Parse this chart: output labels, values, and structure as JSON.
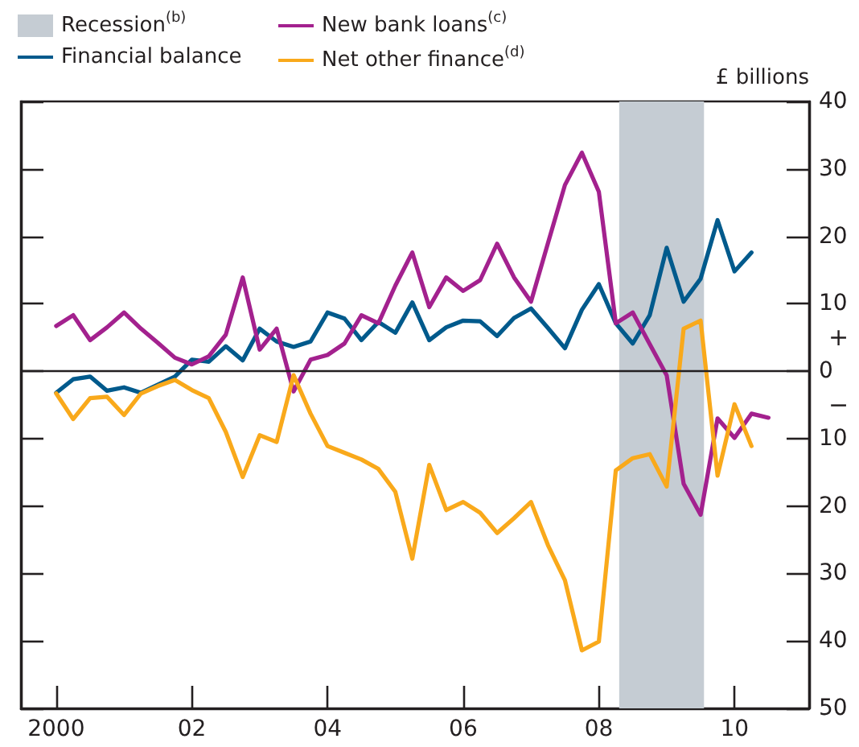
{
  "chart_data": {
    "type": "line",
    "ylabel": "£ billions",
    "x": [
      2000,
      2000.25,
      2000.5,
      2000.75,
      2001,
      2001.25,
      2001.5,
      2001.75,
      2002,
      2002.25,
      2002.5,
      2002.75,
      2003,
      2003.25,
      2003.5,
      2003.75,
      2004,
      2004.25,
      2004.5,
      2004.75,
      2005,
      2005.25,
      2005.5,
      2005.75,
      2006,
      2006.25,
      2006.5,
      2006.75,
      2007,
      2007.25,
      2007.5,
      2007.75,
      2008,
      2008.25,
      2008.5,
      2008.75,
      2009,
      2009.25,
      2009.5,
      2009.75,
      2010,
      2010.25,
      2010.5
    ],
    "series": [
      {
        "name": "Financial balance",
        "color": "#005a8c",
        "values": [
          -3.2,
          -1.2,
          -0.8,
          -2.9,
          -2.4,
          -3.2,
          -2.0,
          -0.8,
          1.7,
          1.4,
          3.7,
          1.6,
          6.3,
          4.4,
          3.6,
          4.4,
          8.7,
          7.8,
          4.6,
          7.3,
          5.7,
          10.2,
          4.6,
          6.5,
          7.5,
          7.4,
          5.2,
          7.9,
          9.3,
          6.4,
          3.4,
          9.1,
          12.9,
          7.1,
          4.1,
          8.3,
          18.3,
          10.3,
          13.7,
          22.4,
          14.8,
          17.6,
          null
        ]
      },
      {
        "name": "New bank loans$^{(c)}$",
        "color": "#a3218e",
        "values": [
          6.7,
          8.3,
          4.6,
          6.5,
          8.7,
          6.3,
          4.2,
          2.0,
          1.0,
          2.2,
          5.4,
          13.9,
          3.2,
          6.3,
          -3.0,
          1.7,
          2.4,
          4.1,
          8.3,
          7.1,
          12.7,
          17.6,
          9.5,
          13.9,
          11.9,
          13.5,
          18.9,
          13.9,
          10.3,
          19.0,
          27.6,
          32.4,
          26.6,
          7.1,
          8.7,
          4.0,
          -0.6,
          -16.7,
          -21.3,
          -7.0,
          -9.9,
          -6.3,
          -6.9
        ]
      },
      {
        "name": "Net other finance$^{(d)}$",
        "color": "#f9a91b",
        "values": [
          -3.3,
          -7.1,
          -4.0,
          -3.8,
          -6.5,
          -3.3,
          -2.2,
          -1.3,
          -2.8,
          -4.0,
          -9.0,
          -15.7,
          -9.5,
          -10.5,
          -0.6,
          -6.3,
          -11.1,
          -12.1,
          -13.1,
          -14.5,
          -17.9,
          -27.8,
          -13.9,
          -20.6,
          -19.4,
          -21.0,
          -24.0,
          -21.8,
          -19.4,
          -25.8,
          -31.0,
          -41.4,
          -40.1,
          -14.7,
          -12.9,
          -12.3,
          -17.1,
          6.3,
          7.5,
          -15.5,
          -4.9,
          -11.1,
          null
        ]
      }
    ],
    "bands": [
      {
        "axis": "x",
        "from": 2008.3,
        "to": 2009.55,
        "label": "Recession$^{(b)}$",
        "color": "#c5ccd3"
      }
    ],
    "ref_lines": [
      {
        "axis": "y",
        "value": 0,
        "color": "#231f20"
      }
    ],
    "annotations": [
      "+",
      "−"
    ],
    "xlim": [
      1999.48,
      2011.1
    ],
    "xticks": [
      {
        "value": 2000,
        "label": "2000"
      },
      {
        "value": 2002,
        "label": "02"
      },
      {
        "value": 2004,
        "label": "04"
      },
      {
        "value": 2006,
        "label": "06"
      },
      {
        "value": 2008,
        "label": "08"
      },
      {
        "value": 2010,
        "label": "10"
      }
    ],
    "ylim": [
      -50,
      40
    ],
    "yticks": [
      {
        "value": -50,
        "label": "50"
      },
      {
        "value": -40,
        "label": "40"
      },
      {
        "value": -30,
        "label": "30"
      },
      {
        "value": -20,
        "label": "20"
      },
      {
        "value": -10,
        "label": "10"
      },
      0,
      10,
      20,
      30,
      40
    ],
    "legend": "top left",
    "grid": false
  }
}
